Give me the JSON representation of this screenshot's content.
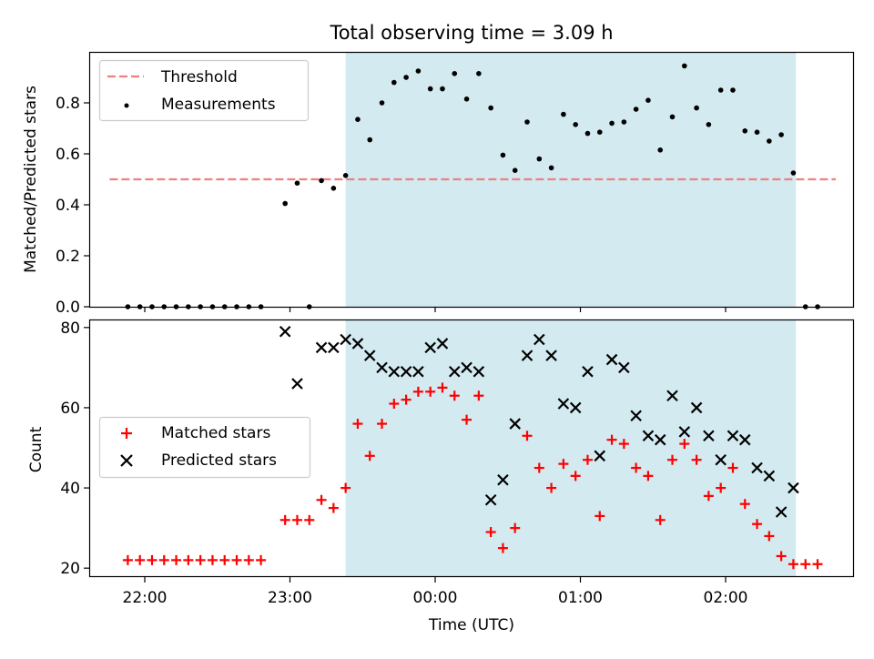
{
  "figure": {
    "title": "Total observing time = 3.09 h",
    "xlabel": "Time (UTC)",
    "x_tick_labels": [
      "22:00",
      "23:00",
      "00:00",
      "01:00",
      "02:00"
    ],
    "highlight_color": "#d3eaf0"
  },
  "chart_data": [
    {
      "type": "scatter",
      "ylabel": "Matched/Predicted stars",
      "ylim": [
        0,
        1
      ],
      "y_ticks": [
        "0.0",
        "0.2",
        "0.4",
        "0.6",
        "0.8"
      ],
      "legend_position": "top-left",
      "highlight_region": {
        "x_start": "23:23",
        "x_end": "02:29"
      },
      "threshold": {
        "name": "Threshold",
        "y": 0.5,
        "x_start": "21:53",
        "x_end": "02:38",
        "color": "#f08080",
        "style": "dashed"
      },
      "series": [
        {
          "name": "Measurements",
          "color": "#000000",
          "marker": "dot",
          "points": [
            [
              "21:53",
              0.0
            ],
            [
              "21:58",
              0.0
            ],
            [
              "22:03",
              0.0
            ],
            [
              "22:08",
              0.0
            ],
            [
              "22:13",
              0.0
            ],
            [
              "22:18",
              0.0
            ],
            [
              "22:23",
              0.0
            ],
            [
              "22:28",
              0.0
            ],
            [
              "22:33",
              0.0
            ],
            [
              "22:38",
              0.0
            ],
            [
              "22:43",
              0.0
            ],
            [
              "22:48",
              0.0
            ],
            [
              "22:58",
              0.405
            ],
            [
              "23:03",
              0.485
            ],
            [
              "23:08",
              0.0
            ],
            [
              "23:13",
              0.495
            ],
            [
              "23:18",
              0.465
            ],
            [
              "23:23",
              0.515
            ],
            [
              "23:28",
              0.735
            ],
            [
              "23:33",
              0.655
            ],
            [
              "23:38",
              0.8
            ],
            [
              "23:43",
              0.88
            ],
            [
              "23:48",
              0.9
            ],
            [
              "23:53",
              0.925
            ],
            [
              "23:58",
              0.855
            ],
            [
              "00:03",
              0.855
            ],
            [
              "00:08",
              0.915
            ],
            [
              "00:13",
              0.815
            ],
            [
              "00:18",
              0.915
            ],
            [
              "00:23",
              0.78
            ],
            [
              "00:28",
              0.595
            ],
            [
              "00:33",
              0.535
            ],
            [
              "00:38",
              0.725
            ],
            [
              "00:43",
              0.58
            ],
            [
              "00:48",
              0.545
            ],
            [
              "00:53",
              0.755
            ],
            [
              "00:58",
              0.715
            ],
            [
              "01:03",
              0.68
            ],
            [
              "01:08",
              0.685
            ],
            [
              "01:13",
              0.72
            ],
            [
              "01:18",
              0.725
            ],
            [
              "01:23",
              0.775
            ],
            [
              "01:28",
              0.81
            ],
            [
              "01:33",
              0.615
            ],
            [
              "01:38",
              0.745
            ],
            [
              "01:43",
              0.945
            ],
            [
              "01:48",
              0.78
            ],
            [
              "01:53",
              0.715
            ],
            [
              "01:58",
              0.85
            ],
            [
              "02:03",
              0.85
            ],
            [
              "02:08",
              0.69
            ],
            [
              "02:13",
              0.685
            ],
            [
              "02:18",
              0.65
            ],
            [
              "02:23",
              0.675
            ],
            [
              "02:28",
              0.525
            ],
            [
              "02:33",
              0.0
            ],
            [
              "02:38",
              0.0
            ]
          ]
        }
      ]
    },
    {
      "type": "scatter",
      "ylabel": "Count",
      "ylim": [
        18,
        82
      ],
      "y_ticks": [
        "20",
        "40",
        "60",
        "80"
      ],
      "legend_position": "center-left",
      "highlight_region": {
        "x_start": "23:23",
        "x_end": "02:29"
      },
      "series": [
        {
          "name": "Matched stars",
          "color": "#ff0000",
          "marker": "plus",
          "points": [
            [
              "21:53",
              22
            ],
            [
              "21:58",
              22
            ],
            [
              "22:03",
              22
            ],
            [
              "22:08",
              22
            ],
            [
              "22:13",
              22
            ],
            [
              "22:18",
              22
            ],
            [
              "22:23",
              22
            ],
            [
              "22:28",
              22
            ],
            [
              "22:33",
              22
            ],
            [
              "22:38",
              22
            ],
            [
              "22:43",
              22
            ],
            [
              "22:48",
              22
            ],
            [
              "22:58",
              32
            ],
            [
              "23:03",
              32
            ],
            [
              "23:08",
              32
            ],
            [
              "23:13",
              37
            ],
            [
              "23:18",
              35
            ],
            [
              "23:23",
              40
            ],
            [
              "23:28",
              56
            ],
            [
              "23:33",
              48
            ],
            [
              "23:38",
              56
            ],
            [
              "23:43",
              61
            ],
            [
              "23:48",
              62
            ],
            [
              "23:53",
              64
            ],
            [
              "23:58",
              64
            ],
            [
              "00:03",
              65
            ],
            [
              "00:08",
              63
            ],
            [
              "00:13",
              57
            ],
            [
              "00:18",
              63
            ],
            [
              "00:23",
              29
            ],
            [
              "00:28",
              25
            ],
            [
              "00:33",
              30
            ],
            [
              "00:38",
              53
            ],
            [
              "00:43",
              45
            ],
            [
              "00:48",
              40
            ],
            [
              "00:53",
              46
            ],
            [
              "00:58",
              43
            ],
            [
              "01:03",
              47
            ],
            [
              "01:08",
              33
            ],
            [
              "01:13",
              52
            ],
            [
              "01:18",
              51
            ],
            [
              "01:23",
              45
            ],
            [
              "01:28",
              43
            ],
            [
              "01:33",
              32
            ],
            [
              "01:38",
              47
            ],
            [
              "01:43",
              51
            ],
            [
              "01:48",
              47
            ],
            [
              "01:53",
              38
            ],
            [
              "01:58",
              40
            ],
            [
              "02:03",
              45
            ],
            [
              "02:08",
              36
            ],
            [
              "02:13",
              31
            ],
            [
              "02:18",
              28
            ],
            [
              "02:23",
              23
            ],
            [
              "02:28",
              21
            ],
            [
              "02:33",
              21
            ],
            [
              "02:38",
              21
            ]
          ]
        },
        {
          "name": "Predicted stars",
          "color": "#000000",
          "marker": "x",
          "points": [
            [
              "22:58",
              79
            ],
            [
              "23:03",
              66
            ],
            [
              "23:13",
              75
            ],
            [
              "23:18",
              75
            ],
            [
              "23:23",
              77
            ],
            [
              "23:28",
              76
            ],
            [
              "23:33",
              73
            ],
            [
              "23:38",
              70
            ],
            [
              "23:43",
              69
            ],
            [
              "23:48",
              69
            ],
            [
              "23:53",
              69
            ],
            [
              "23:58",
              75
            ],
            [
              "00:03",
              76
            ],
            [
              "00:08",
              69
            ],
            [
              "00:13",
              70
            ],
            [
              "00:18",
              69
            ],
            [
              "00:23",
              37
            ],
            [
              "00:28",
              42
            ],
            [
              "00:33",
              56
            ],
            [
              "00:38",
              73
            ],
            [
              "00:43",
              77
            ],
            [
              "00:48",
              73
            ],
            [
              "00:53",
              61
            ],
            [
              "00:58",
              60
            ],
            [
              "01:03",
              69
            ],
            [
              "01:08",
              48
            ],
            [
              "01:13",
              72
            ],
            [
              "01:18",
              70
            ],
            [
              "01:23",
              58
            ],
            [
              "01:28",
              53
            ],
            [
              "01:33",
              52
            ],
            [
              "01:38",
              63
            ],
            [
              "01:43",
              54
            ],
            [
              "01:48",
              60
            ],
            [
              "01:53",
              53
            ],
            [
              "01:58",
              47
            ],
            [
              "02:03",
              53
            ],
            [
              "02:08",
              52
            ],
            [
              "02:13",
              45
            ],
            [
              "02:18",
              43
            ],
            [
              "02:23",
              34
            ],
            [
              "02:28",
              40
            ]
          ]
        }
      ]
    }
  ]
}
